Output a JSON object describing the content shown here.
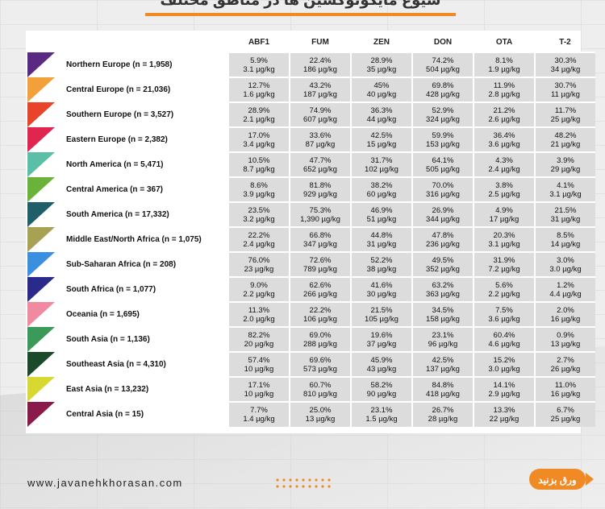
{
  "header": {
    "title": "شیوع مایکوتوکسین ها در مناطق مختلف"
  },
  "table": {
    "columns": [
      "ABF1",
      "FUM",
      "ZEN",
      "DON",
      "OTA",
      "T-2"
    ],
    "rows": [
      {
        "region": "Northern Europe (n = 1,958)",
        "color": "#5a2a82",
        "cells": [
          [
            "5.9%",
            "3.1 µg/kg"
          ],
          [
            "22.4%",
            "186 µg/kg"
          ],
          [
            "28.9%",
            "35 µg/kg"
          ],
          [
            "74.2%",
            "504 µg/kg"
          ],
          [
            "8.1%",
            "1.9 µg/kg"
          ],
          [
            "30.3%",
            "34 µg/kg"
          ]
        ]
      },
      {
        "region": "Central Europe (n = 21,036)",
        "color": "#f2a03a",
        "cells": [
          [
            "12.7%",
            "1.6 µg/kg"
          ],
          [
            "43.2%",
            "187 µg/kg"
          ],
          [
            "45%",
            "40 µg/kg"
          ],
          [
            "69.8%",
            "428 µg/kg"
          ],
          [
            "11.9%",
            "2.8 µg/kg"
          ],
          [
            "30.7%",
            "11 µg/kg"
          ]
        ]
      },
      {
        "region": "Southern Europe (n = 3,527)",
        "color": "#e8442c",
        "cells": [
          [
            "28.9%",
            "2.1 µg/kg"
          ],
          [
            "74.9%",
            "607 µg/kg"
          ],
          [
            "36.3%",
            "44 µg/kg"
          ],
          [
            "52.9%",
            "324 µg/kg"
          ],
          [
            "21.2%",
            "2.6 µg/kg"
          ],
          [
            "11.7%",
            "25 µg/kg"
          ]
        ]
      },
      {
        "region": "Eastern Europe (n = 2,382)",
        "color": "#e0264f",
        "cells": [
          [
            "17.0%",
            "3.4 µg/kg"
          ],
          [
            "33.6%",
            "87 µg/kg"
          ],
          [
            "42.5%",
            "15 µg/kg"
          ],
          [
            "59.9%",
            "153 µg/kg"
          ],
          [
            "36.4%",
            "3.6 µg/kg"
          ],
          [
            "48.2%",
            "21 µg/kg"
          ]
        ]
      },
      {
        "region": "North America (n = 5,471)",
        "color": "#5bbfa8",
        "cells": [
          [
            "10.5%",
            "8.7 µg/kg"
          ],
          [
            "47.7%",
            "652 µg/kg"
          ],
          [
            "31.7%",
            "102 µg/kg"
          ],
          [
            "64.1%",
            "505 µg/kg"
          ],
          [
            "4.3%",
            "2.4 µg/kg"
          ],
          [
            "3.9%",
            "29 µg/kg"
          ]
        ]
      },
      {
        "region": "Central America (n = 367)",
        "color": "#6ab23a",
        "cells": [
          [
            "8.6%",
            "3.9 µg/kg"
          ],
          [
            "81.8%",
            "929 µg/kg"
          ],
          [
            "38.2%",
            "60 µg/kg"
          ],
          [
            "70.0%",
            "316 µg/kg"
          ],
          [
            "3.8%",
            "2.5 µg/kg"
          ],
          [
            "4.1%",
            "3.1 µg/kg"
          ]
        ]
      },
      {
        "region": "South America (n = 17,332)",
        "color": "#1e5f6a",
        "cells": [
          [
            "23.5%",
            "3.2 µg/kg"
          ],
          [
            "75.3%",
            "1,390 µg/kg"
          ],
          [
            "46.9%",
            "51 µg/kg"
          ],
          [
            "26.9%",
            "344 µg/kg"
          ],
          [
            "4.9%",
            "17 µg/kg"
          ],
          [
            "21.5%",
            "31 µg/kg"
          ]
        ]
      },
      {
        "region": "Middle East/North Africa (n = 1,075)",
        "color": "#a8a052",
        "cells": [
          [
            "22.2%",
            "2.4 µg/kg"
          ],
          [
            "66.8%",
            "347 µg/kg"
          ],
          [
            "44.8%",
            "31 µg/kg"
          ],
          [
            "47.8%",
            "236 µg/kg"
          ],
          [
            "20.3%",
            "3.1 µg/kg"
          ],
          [
            "8.5%",
            "14 µg/kg"
          ]
        ]
      },
      {
        "region": "Sub-Saharan Africa (n = 208)",
        "color": "#3a8fe0",
        "cells": [
          [
            "76.0%",
            "23 µg/kg"
          ],
          [
            "72.6%",
            "789 µg/kg"
          ],
          [
            "52.2%",
            "38 µg/kg"
          ],
          [
            "49.5%",
            "352 µg/kg"
          ],
          [
            "31.9%",
            "7.2 µg/kg"
          ],
          [
            "3.0%",
            "3.0 µg/kg"
          ]
        ]
      },
      {
        "region": "South Africa (n = 1,077)",
        "color": "#2a2a8a",
        "cells": [
          [
            "9.0%",
            "2.2 µg/kg"
          ],
          [
            "62.6%",
            "266 µg/kg"
          ],
          [
            "41.6%",
            "30 µg/kg"
          ],
          [
            "63.2%",
            "363 µg/kg"
          ],
          [
            "5.6%",
            "2.2 µg/kg"
          ],
          [
            "1.2%",
            "4.4 µg/kg"
          ]
        ]
      },
      {
        "region": "Oceania (n = 1,695)",
        "color": "#f08aa0",
        "cells": [
          [
            "11.3%",
            "2.0 µg/kg"
          ],
          [
            "22.2%",
            "106 µg/kg"
          ],
          [
            "21.5%",
            "105 µg/kg"
          ],
          [
            "34.5%",
            "158 µg/kg"
          ],
          [
            "7.5%",
            "3.6 µg/kg"
          ],
          [
            "2.0%",
            "16 µg/kg"
          ]
        ]
      },
      {
        "region": "South Asia (n = 1,136)",
        "color": "#3a9a5a",
        "cells": [
          [
            "82.2%",
            "20 µg/kg"
          ],
          [
            "69.0%",
            "288 µg/kg"
          ],
          [
            "19.6%",
            "37 µg/kg"
          ],
          [
            "23.1%",
            "96 µg/kg"
          ],
          [
            "60.4%",
            "4.6 µg/kg"
          ],
          [
            "0.9%",
            "13 µg/kg"
          ]
        ]
      },
      {
        "region": "Southeast Asia  (n = 4,310)",
        "color": "#1a4a2a",
        "cells": [
          [
            "57.4%",
            "10 µg/kg"
          ],
          [
            "69.6%",
            "573 µg/kg"
          ],
          [
            "45.9%",
            "43 µg/kg"
          ],
          [
            "42.5%",
            "137 µg/kg"
          ],
          [
            "15.2%",
            "3.0 µg/kg"
          ],
          [
            "2.7%",
            "26 µg/kg"
          ]
        ]
      },
      {
        "region": "East Asia (n = 13,232)",
        "color": "#d8d832",
        "cells": [
          [
            "17.1%",
            "10 µg/kg"
          ],
          [
            "60.7%",
            "810 µg/kg"
          ],
          [
            "58.2%",
            "90 µg/kg"
          ],
          [
            "84.8%",
            "418 µg/kg"
          ],
          [
            "14.1%",
            "2.9 µg/kg"
          ],
          [
            "11.0%",
            "16 µg/kg"
          ]
        ]
      },
      {
        "region": "Central Asia (n = 15)",
        "color": "#8a1a4a",
        "cells": [
          [
            "7.7%",
            "1.4 µg/kg"
          ],
          [
            "25.0%",
            "13 µg/kg"
          ],
          [
            "23.1%",
            "1.5 µg/kg"
          ],
          [
            "26.7%",
            "28 µg/kg"
          ],
          [
            "13.3%",
            "22 µg/kg"
          ],
          [
            "6.7%",
            "25 µg/kg"
          ]
        ]
      }
    ]
  },
  "footer": {
    "url": "www.javanehkhorasan.com",
    "turn_page_label": "ورق بزنید"
  },
  "colors": {
    "accent": "#f08a24"
  }
}
